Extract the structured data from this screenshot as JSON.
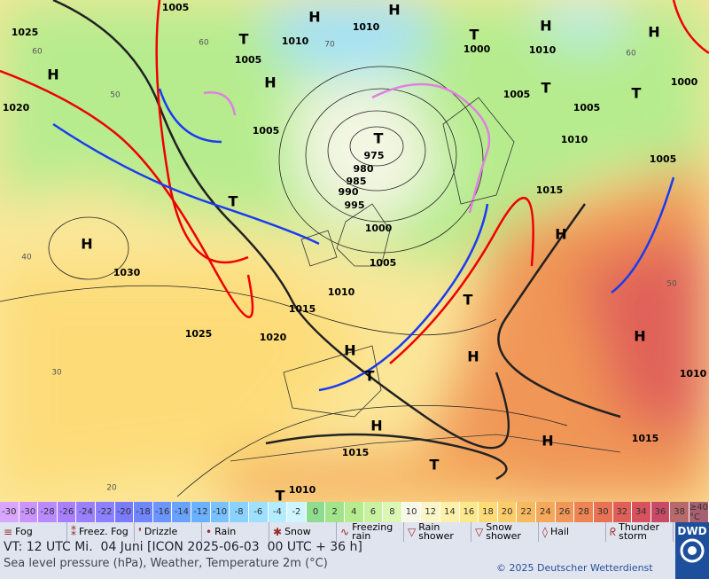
{
  "map": {
    "pressure_labels": [
      "1005",
      "1025",
      "1010",
      "1005",
      "1010",
      "1000",
      "1010",
      "1000",
      "1020",
      "1005",
      "1005",
      "1005",
      "1010",
      "1005",
      "975",
      "980",
      "985",
      "990",
      "995",
      "1000",
      "1015",
      "1005",
      "1030",
      "1010",
      "1015",
      "1025",
      "1020",
      "1010",
      "1015",
      "1015",
      "1010"
    ],
    "graticule_labels": [
      "60",
      "50",
      "40",
      "30",
      "20",
      "60",
      "70",
      "60",
      "50"
    ],
    "centers": [
      "H",
      "H",
      "H",
      "H",
      "H",
      "H",
      "H",
      "H",
      "H",
      "H",
      "H",
      "H",
      "H",
      "T",
      "T",
      "T",
      "T",
      "T",
      "T",
      "T",
      "T",
      "T",
      "T"
    ]
  },
  "color_scale": {
    "cells": [
      {
        "label": "-30",
        "color": "#d9a6ff"
      },
      {
        "label": "-30",
        "color": "#c994ff"
      },
      {
        "label": "-28",
        "color": "#b98aff"
      },
      {
        "label": "-26",
        "color": "#a87fff"
      },
      {
        "label": "-24",
        "color": "#9a80ff"
      },
      {
        "label": "-22",
        "color": "#8b80ff"
      },
      {
        "label": "-20",
        "color": "#7a7aff"
      },
      {
        "label": "-18",
        "color": "#6f86ff"
      },
      {
        "label": "-16",
        "color": "#6b94ff"
      },
      {
        "label": "-14",
        "color": "#6aa3ff"
      },
      {
        "label": "-12",
        "color": "#6ab2ff"
      },
      {
        "label": "-10",
        "color": "#78c2ff"
      },
      {
        "label": "-8",
        "color": "#8ad2ff"
      },
      {
        "label": "-6",
        "color": "#9ee0ff"
      },
      {
        "label": "-4",
        "color": "#b4ecff"
      },
      {
        "label": "-2",
        "color": "#cff5ff"
      },
      {
        "label": "0",
        "color": "#8fdc8f"
      },
      {
        "label": "2",
        "color": "#a2e48c"
      },
      {
        "label": "4",
        "color": "#b6ec8e"
      },
      {
        "label": "6",
        "color": "#c8f2a0"
      },
      {
        "label": "8",
        "color": "#dcf6b4"
      },
      {
        "label": "10",
        "color": "#f7f8ea"
      },
      {
        "label": "12",
        "color": "#fbf6c8"
      },
      {
        "label": "14",
        "color": "#fdf0a8"
      },
      {
        "label": "16",
        "color": "#fde88c"
      },
      {
        "label": "18",
        "color": "#fddc78"
      },
      {
        "label": "20",
        "color": "#fbcc6a"
      },
      {
        "label": "22",
        "color": "#f8ba60"
      },
      {
        "label": "24",
        "color": "#f4a85a"
      },
      {
        "label": "26",
        "color": "#f09656"
      },
      {
        "label": "28",
        "color": "#ec8454"
      },
      {
        "label": "30",
        "color": "#e87254"
      },
      {
        "label": "32",
        "color": "#e06058"
      },
      {
        "label": "34",
        "color": "#d8525e"
      },
      {
        "label": "36",
        "color": "#c94a66"
      },
      {
        "label": "38",
        "color": "#b86a6a"
      },
      {
        "label": "≥40 °C",
        "color": "#a86070"
      }
    ]
  },
  "legend": [
    "Fog",
    "Freez. Fog",
    "Drizzle",
    "Rain",
    "Snow",
    "Freezing rain",
    "Rain shower",
    "Snow shower",
    "Hail",
    "Thunder storm"
  ],
  "footer": {
    "valid_time": "VT: 12 UTC Mi.  04 Juni [ICON 2025-06-03  00 UTC + 36 h]",
    "description": "Sea level pressure (hPa), Weather, Temperature 2m (°C)",
    "copyright": "© 2025 Deutscher Wetterdienst",
    "logo": "DWD"
  }
}
